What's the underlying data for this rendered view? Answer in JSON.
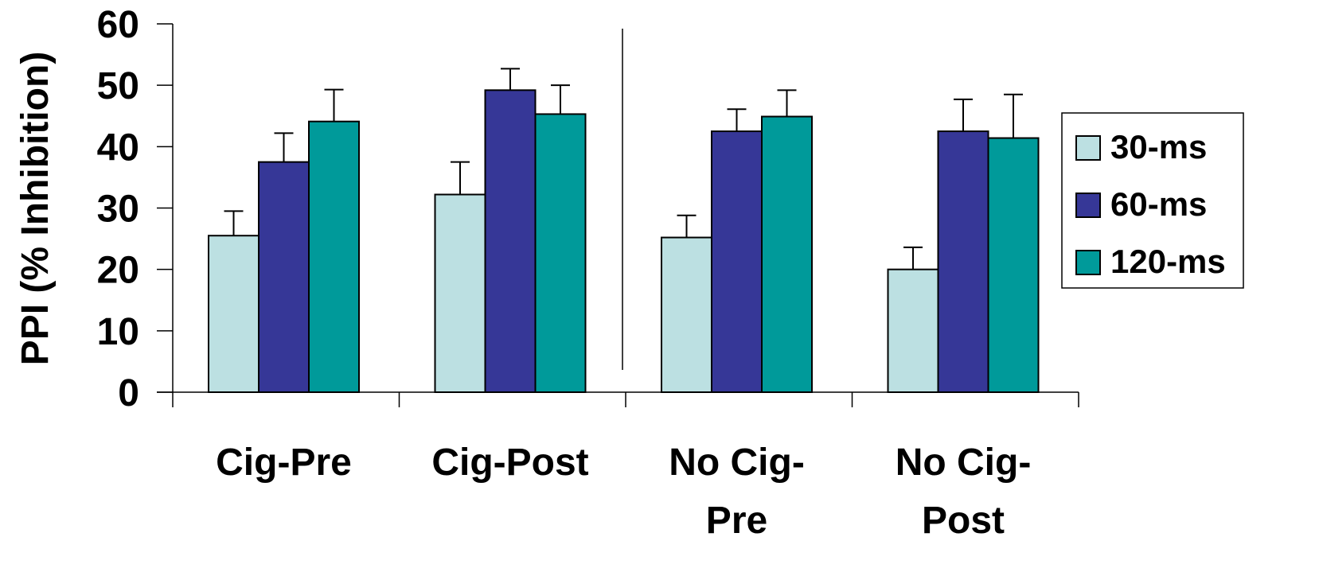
{
  "chart_data": {
    "type": "bar",
    "ylabel": "PPI (% Inhibition)",
    "ylim": [
      0,
      60
    ],
    "yticks": [
      0,
      10,
      20,
      30,
      40,
      50,
      60
    ],
    "categories": [
      {
        "lines": [
          "Cig-Pre"
        ]
      },
      {
        "lines": [
          "Cig-Post"
        ]
      },
      {
        "lines": [
          "No Cig-",
          "Pre"
        ]
      },
      {
        "lines": [
          "No Cig-",
          "Post"
        ]
      }
    ],
    "series": [
      {
        "name": "30-ms",
        "color": "#bce0e2",
        "values": [
          25.5,
          32.2,
          25.2,
          20.0
        ],
        "errors": [
          4.0,
          5.3,
          3.6,
          3.6
        ]
      },
      {
        "name": "60-ms",
        "color": "#363797",
        "values": [
          37.5,
          49.2,
          42.5,
          42.5
        ],
        "errors": [
          4.7,
          3.5,
          3.6,
          5.2
        ]
      },
      {
        "name": "120-ms",
        "color": "#009a9a",
        "values": [
          44.1,
          45.3,
          44.9,
          41.4
        ],
        "errors": [
          5.2,
          4.7,
          4.3,
          7.1
        ]
      }
    ],
    "legend_position": "right",
    "divider_after_category": 1
  }
}
